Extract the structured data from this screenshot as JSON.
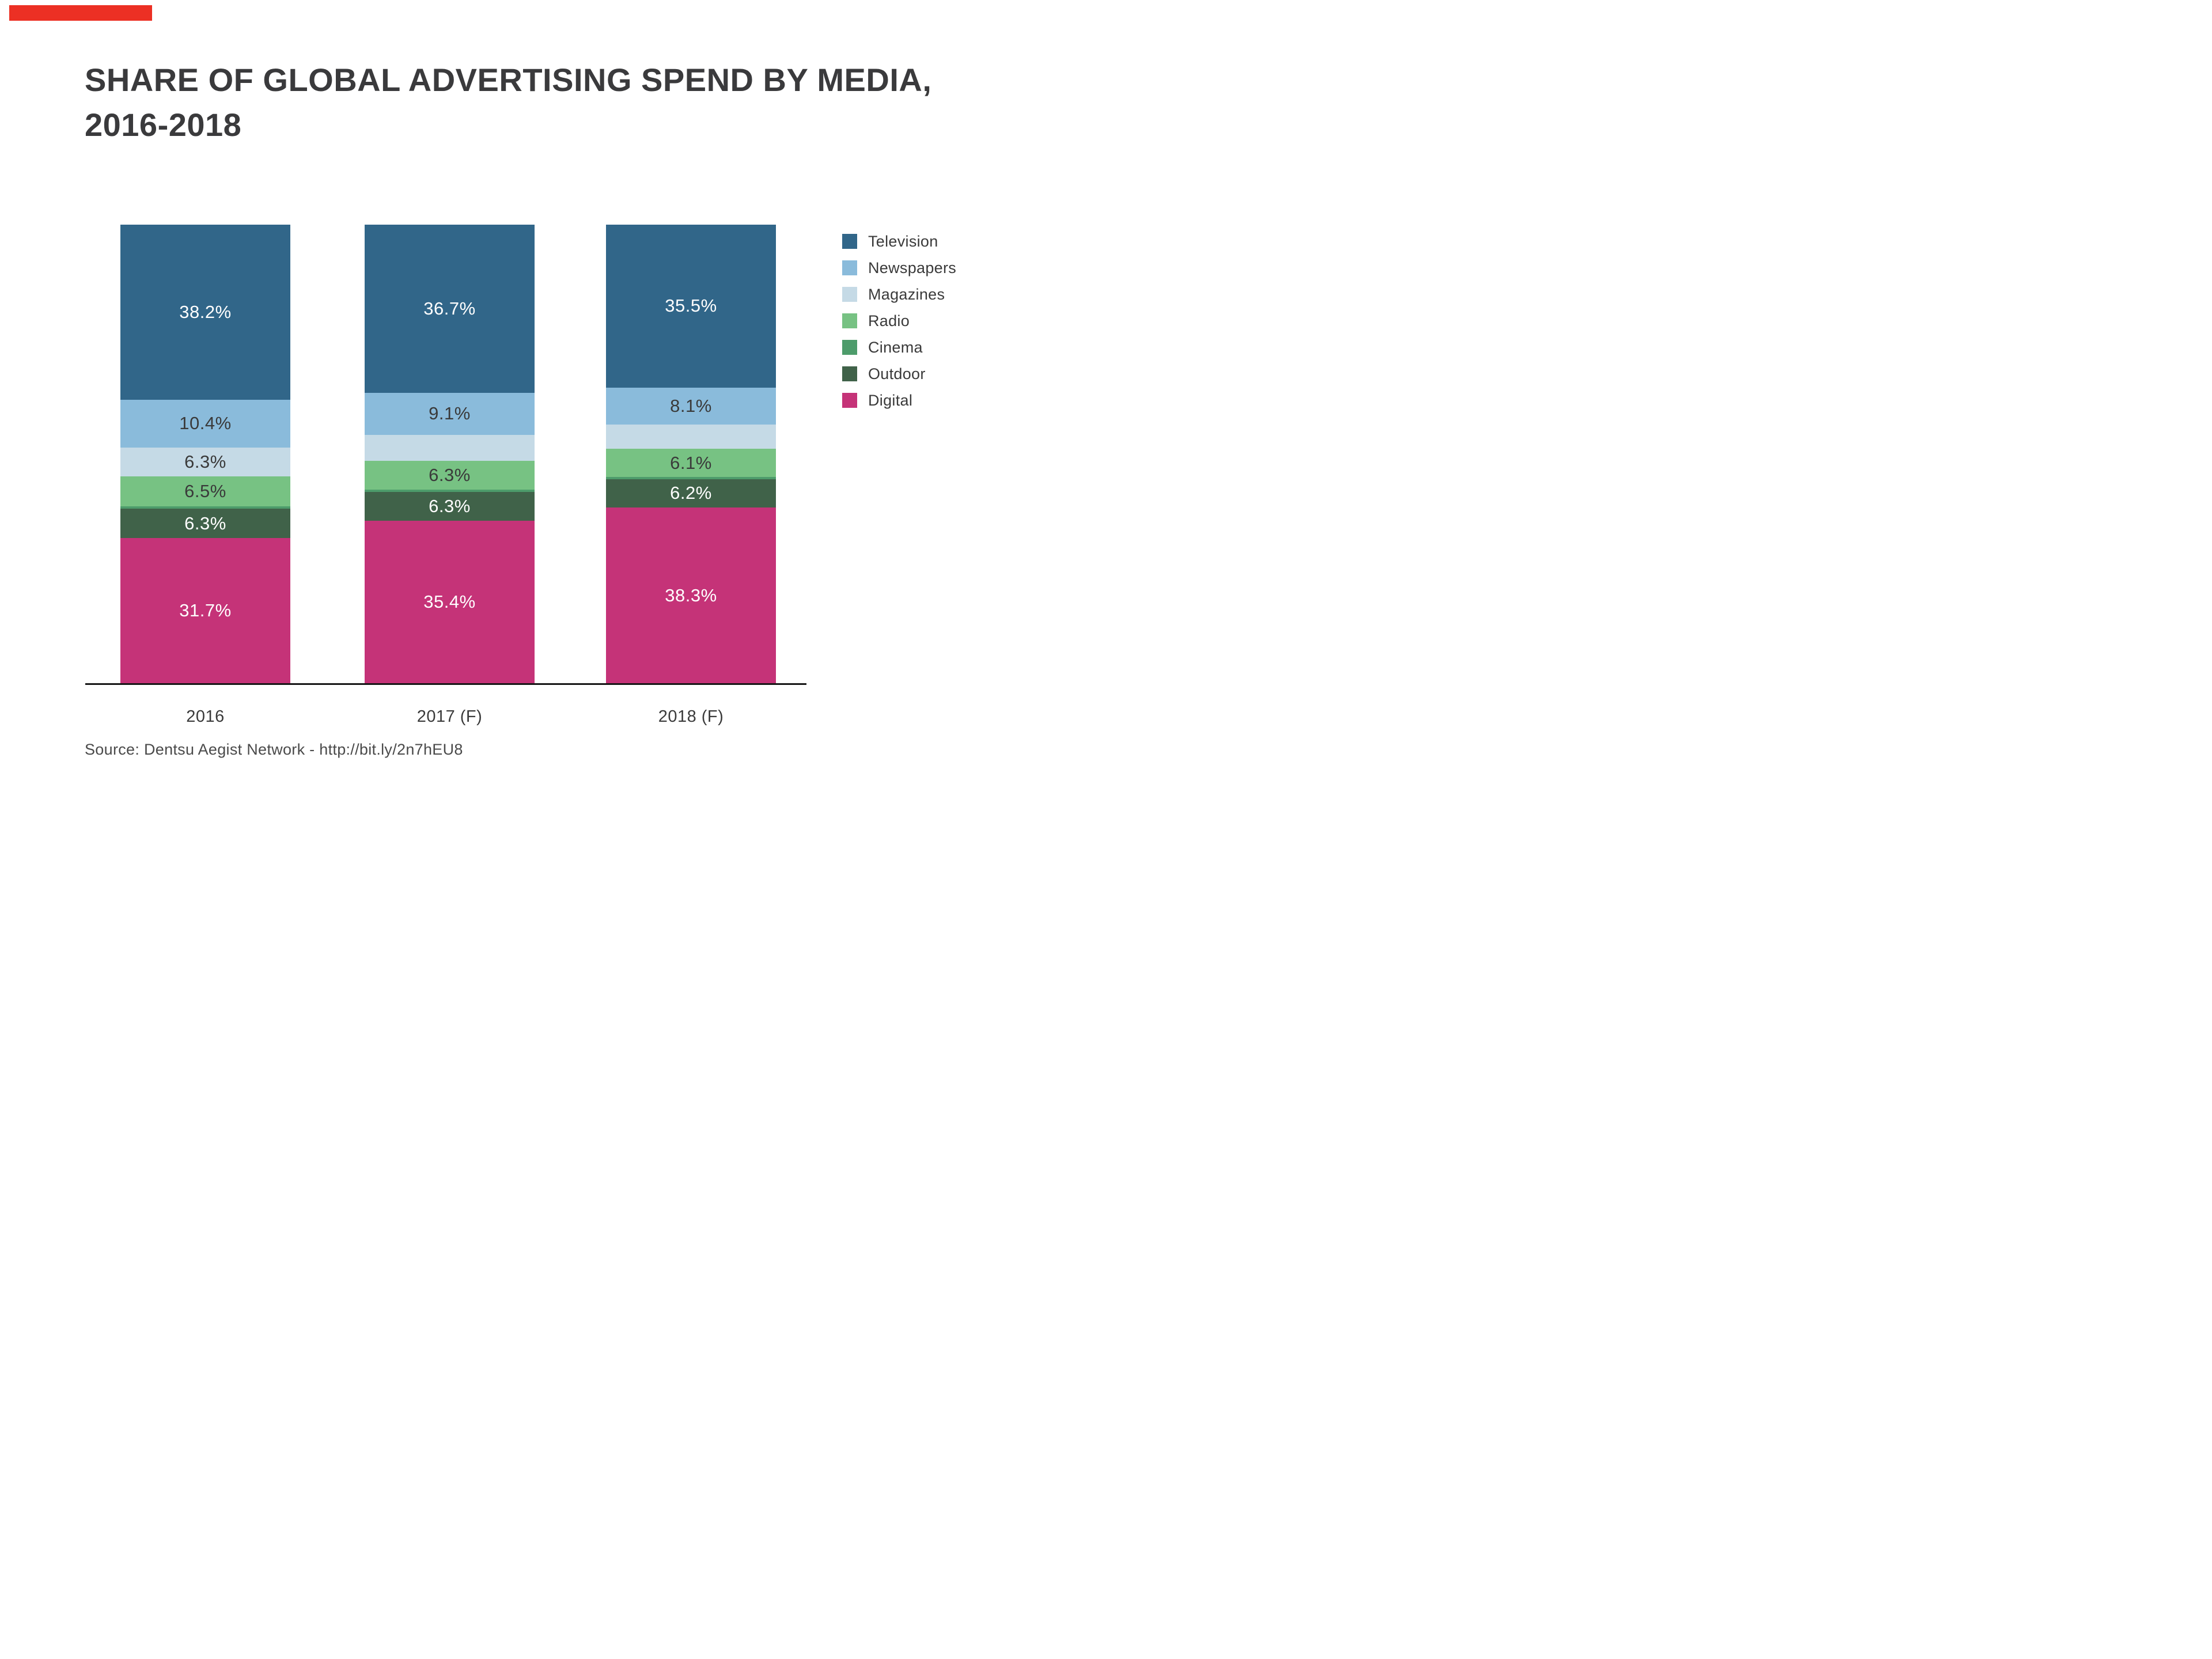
{
  "accent_bar": {
    "color": "#ec3024"
  },
  "title": {
    "line1": "SHARE OF GLOBAL ADVERTISING SPEND BY MEDIA,",
    "line2": "2016-2018",
    "color": "#3a3a3c"
  },
  "source": "Source: Dentsu Aegist Network - http://bit.ly/2n7hEU8",
  "chart_data": {
    "type": "bar",
    "stacked": true,
    "percent_stacked": true,
    "title": "SHARE OF GLOBAL ADVERTISING SPEND BY MEDIA, 2016-2018",
    "categories": [
      "2016",
      "2017 (F)",
      "2018 (F)"
    ],
    "series": [
      {
        "name": "Television",
        "color": "#316689",
        "values": [
          38.2,
          36.7,
          35.5
        ],
        "data_labels": [
          "38.2%",
          "36.7%",
          "35.5%"
        ],
        "label_color": "#ffffff"
      },
      {
        "name": "Newspapers",
        "color": "#8abbdb",
        "values": [
          10.4,
          9.1,
          8.1
        ],
        "data_labels": [
          "10.4%",
          "9.1%",
          "8.1%"
        ],
        "label_color": "#3a3a3a"
      },
      {
        "name": "Magazines",
        "color": "#c5dae6",
        "values": [
          6.3,
          5.7,
          5.3
        ],
        "data_labels": [
          "6.3%",
          "",
          ""
        ],
        "label_color": "#3a3a3a"
      },
      {
        "name": "Radio",
        "color": "#77c283",
        "values": [
          6.5,
          6.3,
          6.1
        ],
        "data_labels": [
          "6.5%",
          "6.3%",
          "6.1%"
        ],
        "label_color": "#3a3a3a"
      },
      {
        "name": "Cinema",
        "color": "#4d9c6b",
        "values": [
          0.6,
          0.5,
          0.5
        ],
        "data_labels": [
          "",
          "",
          ""
        ],
        "label_color": "#ffffff"
      },
      {
        "name": "Outdoor",
        "color": "#406249",
        "values": [
          6.3,
          6.3,
          6.2
        ],
        "data_labels": [
          "6.3%",
          "6.3%",
          "6.2%"
        ],
        "label_color": "#ffffff"
      },
      {
        "name": "Digital",
        "color": "#c53378",
        "values": [
          31.7,
          35.4,
          38.3
        ],
        "data_labels": [
          "31.7%",
          "35.4%",
          "38.3%"
        ],
        "label_color": "#ffffff"
      }
    ],
    "ylim": [
      0,
      100
    ],
    "grid": false,
    "legend_position": "right",
    "xlabel": "",
    "ylabel": ""
  }
}
